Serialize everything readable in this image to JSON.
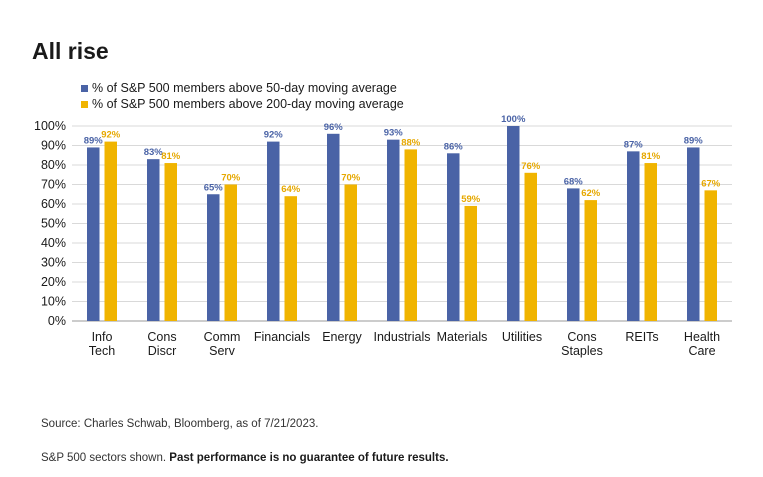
{
  "title": "All rise",
  "chart_data": {
    "type": "bar",
    "categories": [
      [
        "Info",
        "Tech"
      ],
      [
        "Cons",
        "Discr"
      ],
      [
        "Comm",
        "Serv"
      ],
      [
        "Financials"
      ],
      [
        "Energy"
      ],
      [
        "Industrials"
      ],
      [
        "Materials"
      ],
      [
        "Utilities"
      ],
      [
        "Cons",
        "Staples"
      ],
      [
        "REITs"
      ],
      [
        "Health",
        "Care"
      ]
    ],
    "series": [
      {
        "name": "% of S&P 500 members above 50-day moving average",
        "color": "#4a63a6",
        "label_color": "#4a63a6",
        "values": [
          89,
          83,
          65,
          92,
          96,
          93,
          86,
          100,
          68,
          87,
          89
        ],
        "labels": [
          "89%",
          "83%",
          "65%",
          "92%",
          "96%",
          "93%",
          "86%",
          "100%",
          "68%",
          "87%",
          "89%"
        ]
      },
      {
        "name": "% of S&P 500 members above 200-day moving average",
        "color": "#f0b400",
        "label_color": "#e6a800",
        "values": [
          92,
          81,
          70,
          64,
          70,
          88,
          59,
          76,
          62,
          81,
          67
        ],
        "labels": [
          "92%",
          "81%",
          "70%",
          "64%",
          "70%",
          "88%",
          "59%",
          "76%",
          "62%",
          "81%",
          "67%"
        ]
      }
    ],
    "ylim": [
      0,
      100
    ],
    "yticks": [
      0,
      10,
      20,
      30,
      40,
      50,
      60,
      70,
      80,
      90,
      100
    ],
    "ytick_labels": [
      "0%",
      "10%",
      "20%",
      "30%",
      "40%",
      "50%",
      "60%",
      "70%",
      "80%",
      "90%",
      "100%"
    ],
    "grid": true,
    "legend_position": "top-left"
  },
  "footer": {
    "source": "Source: Charles Schwab, Bloomberg, as of 7/21/2023.",
    "note_plain": "S&P 500 sectors shown. ",
    "note_bold": "Past performance is no guarantee of future results."
  }
}
